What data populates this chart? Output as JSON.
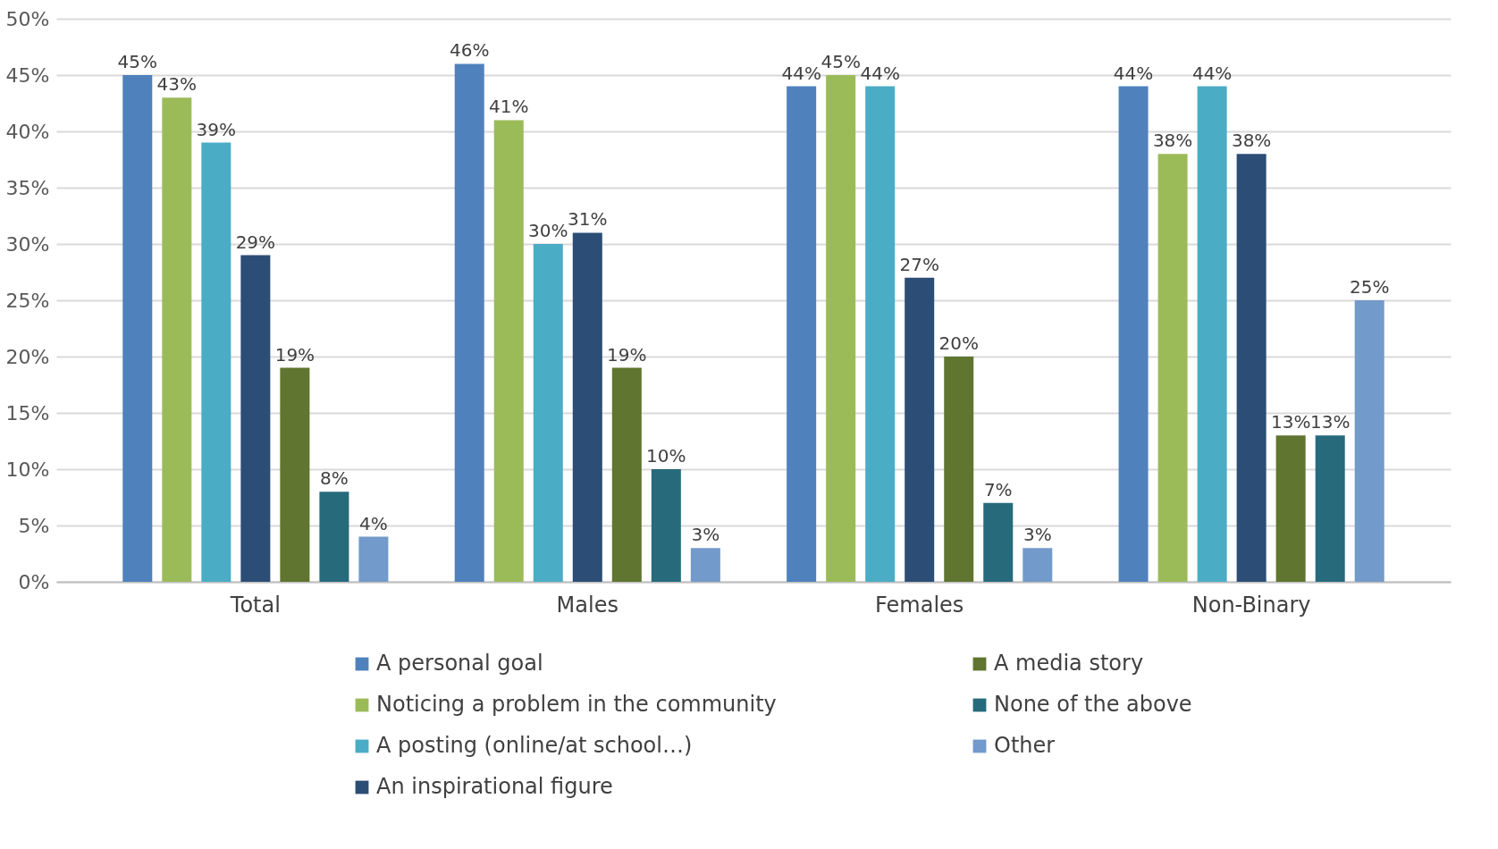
{
  "chart_data": {
    "type": "bar",
    "categories": [
      "Total",
      "Males",
      "Females",
      "Non-Binary"
    ],
    "series": [
      {
        "name": "A personal goal",
        "color": "#4f81bd",
        "values": [
          45,
          46,
          44,
          44
        ],
        "value_labels": [
          "45%",
          "46%",
          "44%",
          "44%"
        ]
      },
      {
        "name": "Noticing a problem in the community",
        "color": "#9bbb59",
        "values": [
          43,
          41,
          45,
          38
        ],
        "value_labels": [
          "43%",
          "41%",
          "45%",
          "38%"
        ]
      },
      {
        "name": "A posting (online/at school…)",
        "color": "#4bacc6",
        "values": [
          39,
          30,
          44,
          44
        ],
        "value_labels": [
          "39%",
          "30%",
          "44%",
          "44%"
        ]
      },
      {
        "name": "An inspirational figure",
        "color": "#2c4d75",
        "values": [
          29,
          31,
          27,
          38
        ],
        "value_labels": [
          "29%",
          "31%",
          "27%",
          "38%"
        ]
      },
      {
        "name": "A media story",
        "color": "#5f7530",
        "values": [
          19,
          19,
          20,
          13
        ],
        "value_labels": [
          "19%",
          "19%",
          "20%",
          "13%"
        ]
      },
      {
        "name": "None of the above",
        "color": "#276a7c",
        "values": [
          8,
          10,
          7,
          13
        ],
        "value_labels": [
          "8%",
          "10%",
          "7%",
          "13%"
        ]
      },
      {
        "name": "Other",
        "color": "#729aca",
        "values": [
          4,
          3,
          3,
          25
        ],
        "value_labels": [
          "4%",
          "3%",
          "3%",
          "25%"
        ]
      }
    ],
    "ylim": [
      0,
      50
    ],
    "yticks": [
      {
        "value": 0,
        "label": "0%"
      },
      {
        "value": 5,
        "label": "5%"
      },
      {
        "value": 10,
        "label": "10%"
      },
      {
        "value": 15,
        "label": "15%"
      },
      {
        "value": 20,
        "label": "20%"
      },
      {
        "value": 25,
        "label": "25%"
      },
      {
        "value": 30,
        "label": "30%"
      },
      {
        "value": 35,
        "label": "35%"
      },
      {
        "value": 40,
        "label": "40%"
      },
      {
        "value": 45,
        "label": "45%"
      },
      {
        "value": 50,
        "label": "50%"
      }
    ],
    "grid": "y",
    "legend": "bottom"
  }
}
